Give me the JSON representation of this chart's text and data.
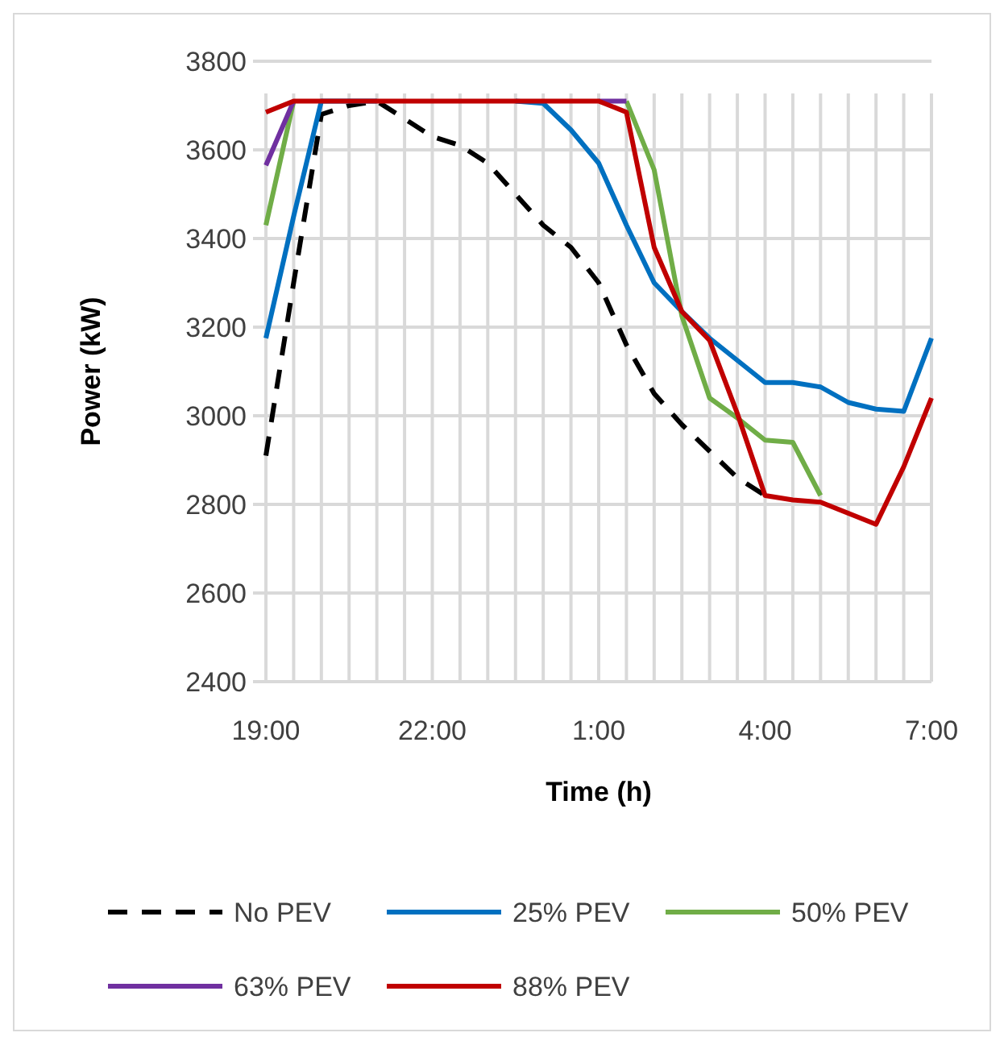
{
  "chart_data": {
    "type": "line",
    "xlabel": "Time (h)",
    "ylabel": "Power (kW)",
    "categories": [
      "19:00",
      null,
      null,
      null,
      null,
      null,
      "22:00",
      null,
      null,
      null,
      null,
      null,
      "1:00",
      null,
      null,
      null,
      null,
      null,
      "4:00",
      null,
      null,
      null,
      null,
      null,
      "7:00"
    ],
    "ylim": [
      2400,
      3800
    ],
    "yticks": [
      2400,
      2600,
      2800,
      3000,
      3200,
      3400,
      3600,
      3800
    ],
    "grid": true,
    "legend": "bottom",
    "marker": "none",
    "series": [
      {
        "name": "No PEV",
        "color": "#000000",
        "line_style": "dashed",
        "values": [
          2910,
          3300,
          3680,
          3700,
          3710,
          3670,
          3630,
          3610,
          3570,
          3500,
          3430,
          3380,
          3300,
          3160,
          3050,
          2980,
          2920,
          2860,
          2820,
          null,
          null,
          null,
          null,
          null,
          null
        ]
      },
      {
        "name": "25% PEV",
        "color": "#0070c0",
        "line_style": "solid",
        "values": [
          3175,
          3450,
          3710,
          3710,
          3710,
          null,
          null,
          null,
          null,
          3710,
          3705,
          3645,
          3570,
          3430,
          3300,
          3235,
          3175,
          3125,
          3075,
          3075,
          3065,
          3030,
          3015,
          3010,
          3175
        ]
      },
      {
        "name": "50% PEV",
        "color": "#70ad47",
        "line_style": "solid",
        "values": [
          3430,
          3710,
          null,
          null,
          null,
          null,
          null,
          null,
          null,
          null,
          null,
          null,
          null,
          3710,
          3555,
          3225,
          3040,
          2995,
          2945,
          2940,
          2820,
          null,
          null,
          null,
          null
        ]
      },
      {
        "name": "63% PEV",
        "color": "#7030a0",
        "line_style": "solid",
        "values": [
          3565,
          3710,
          null,
          null,
          null,
          null,
          null,
          null,
          null,
          null,
          null,
          null,
          3710,
          3710,
          null,
          null,
          null,
          null,
          null,
          null,
          null,
          null,
          null,
          null,
          null
        ]
      },
      {
        "name": "88% PEV",
        "color": "#c00000",
        "line_style": "solid",
        "values": [
          3685,
          3710,
          3710,
          3710,
          3710,
          3710,
          3710,
          3710,
          3710,
          3710,
          3710,
          3710,
          3710,
          3685,
          3380,
          3235,
          3170,
          3005,
          2820,
          2810,
          2805,
          2780,
          2755,
          2885,
          3040
        ]
      }
    ]
  }
}
